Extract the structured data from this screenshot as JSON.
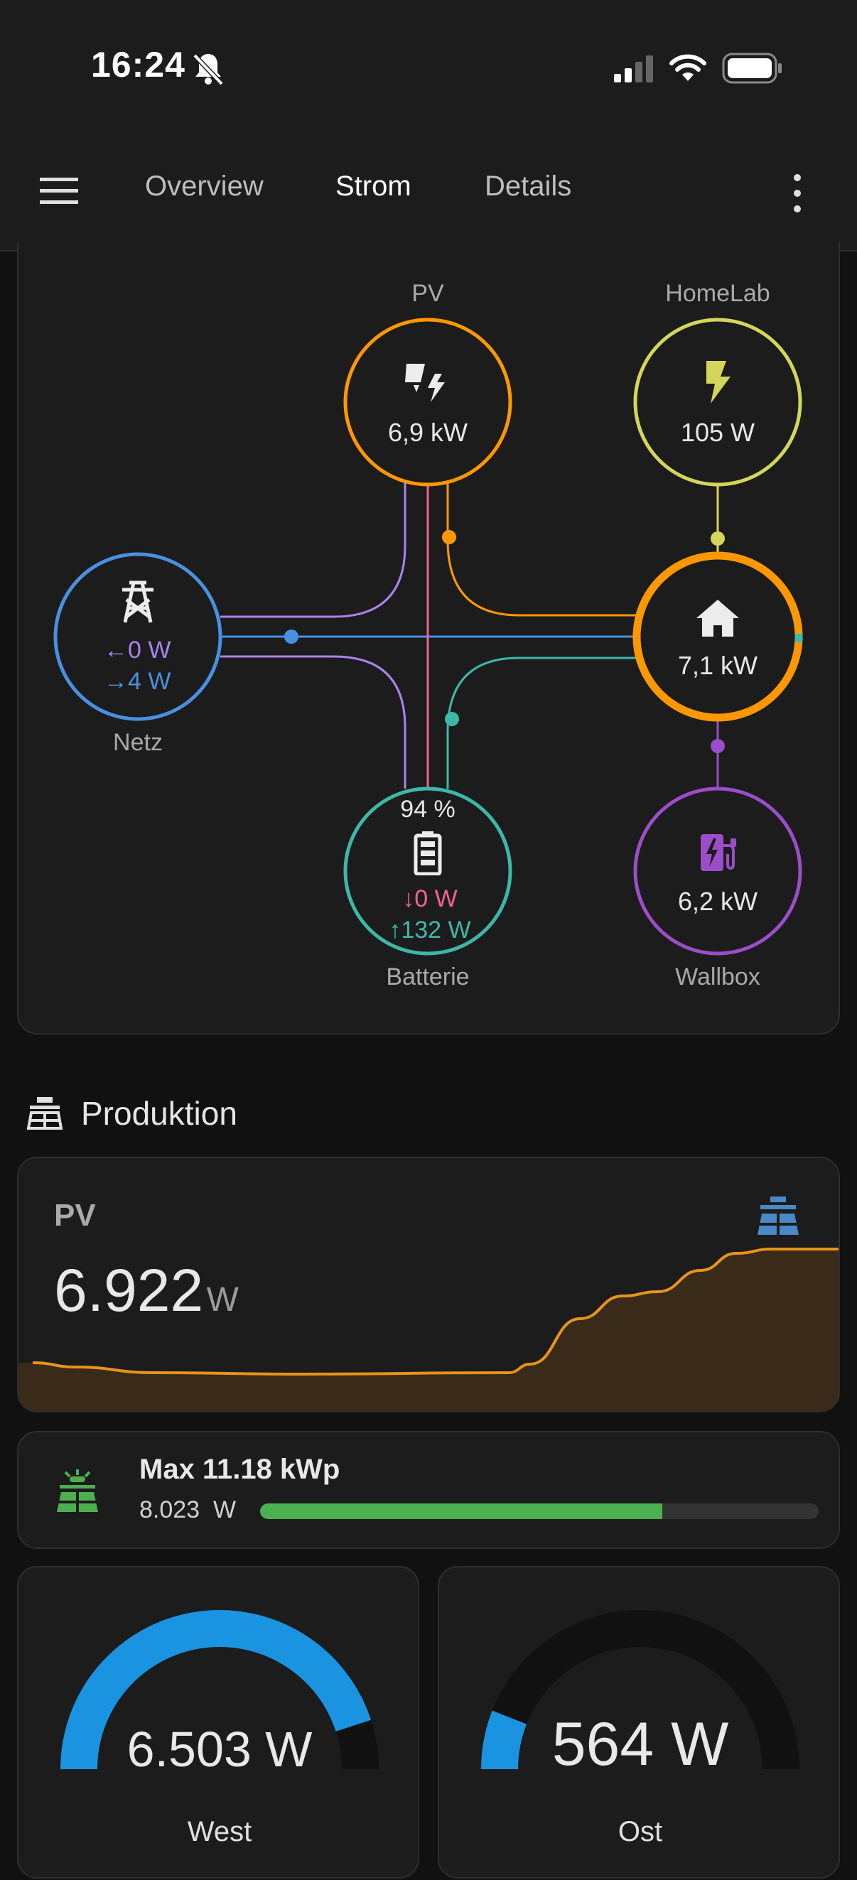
{
  "status_bar": {
    "time": "16:24",
    "icons": [
      "bell-off-icon",
      "cellular-signal-icon",
      "wifi-icon",
      "battery-icon"
    ]
  },
  "header": {
    "menu_icon": "hamburger-menu-icon",
    "tabs": [
      {
        "label": "Overview",
        "active": false
      },
      {
        "label": "Strom",
        "active": true
      },
      {
        "label": "Details",
        "active": false
      }
    ],
    "more_icon": "more-vertical-icon"
  },
  "energy_flow": {
    "pv": {
      "label": "PV",
      "value": "6,9 kW",
      "icon": "solar-power-icon",
      "color": "#ff9800"
    },
    "homelab": {
      "label": "HomeLab",
      "value": "105 W",
      "icon": "lightning-bolt-icon",
      "color": "#d4d65a"
    },
    "grid": {
      "label": "Netz",
      "import": "0 W",
      "export": "4 W",
      "icon": "transmission-tower-icon",
      "color": "#4a90e2",
      "import_color": "#a883f0"
    },
    "home": {
      "value": "7,1 kW",
      "icon": "home-icon",
      "color": "#ff9800"
    },
    "battery": {
      "label": "Batterie",
      "soc": "94 %",
      "discharge": "0 W",
      "charge": "132 W",
      "icon": "battery-icon",
      "color": "#3db8a8",
      "discharge_color": "#f06292"
    },
    "wallbox": {
      "label": "Wallbox",
      "value": "6,2 kW",
      "icon": "ev-station-icon",
      "color": "#9b4dca"
    }
  },
  "production": {
    "title": "Produktion",
    "icon": "solar-panel-icon"
  },
  "pv_card": {
    "name": "PV",
    "value": "6.922",
    "unit": "W",
    "icon": "solar-panel-icon",
    "line_color": "#e8931a",
    "fill_color": "#3a2a1a"
  },
  "max_card": {
    "title": "Max 11.18 kWp",
    "value": "8.023  W",
    "fraction": 0.72,
    "bar_color": "#4caf50",
    "icon": "solar-panel-icon"
  },
  "gauges": [
    {
      "label": "West",
      "value": "6.503 W",
      "fraction": 0.9,
      "color": "#1a94e0"
    },
    {
      "label": "Ost",
      "value": "564 W",
      "fraction": 0.12,
      "color": "#1a94e0"
    }
  ]
}
